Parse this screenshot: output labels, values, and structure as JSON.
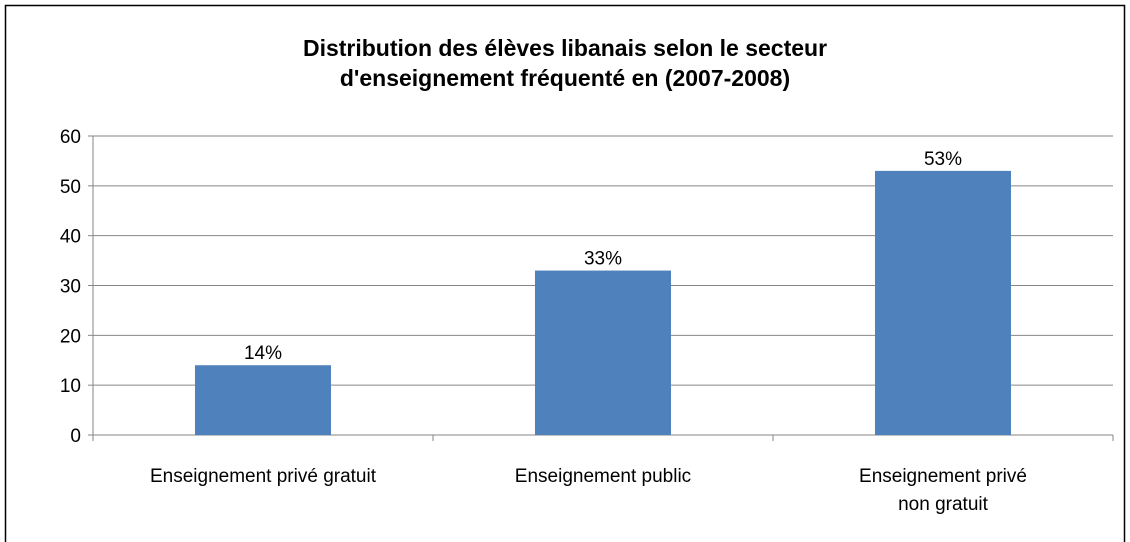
{
  "chart_data": {
    "type": "bar",
    "title": "Distribution des élèves libanais selon le secteur\nd'enseignement fréquenté en (2007-2008)",
    "categories": [
      "Enseignement privé gratuit",
      "Enseignement public",
      "Enseignement privé\nnon gratuit"
    ],
    "values": [
      14,
      33,
      53
    ],
    "value_labels": [
      "14%",
      "33%",
      "53%"
    ],
    "color": "#4f81bd",
    "ylim": [
      0,
      60
    ],
    "yticks": [
      0,
      10,
      20,
      30,
      40,
      50,
      60
    ],
    "grid": true
  }
}
